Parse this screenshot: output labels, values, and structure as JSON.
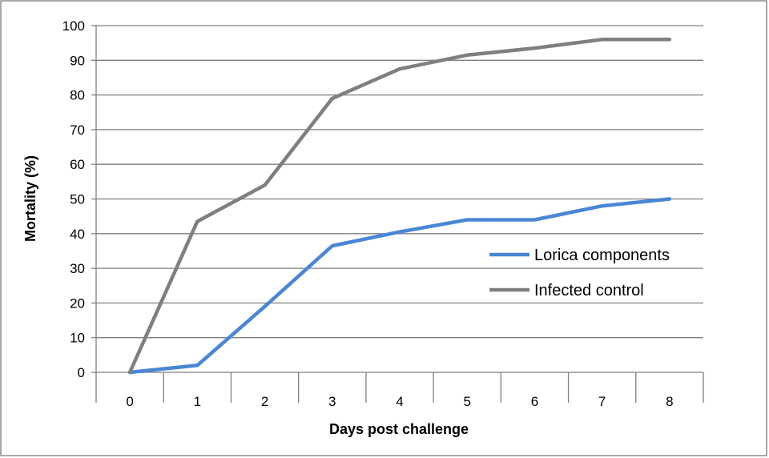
{
  "chart_data": {
    "type": "line",
    "title": "",
    "xlabel": "Days post challenge",
    "ylabel": "Mortality (%)",
    "x": [
      0,
      1,
      2,
      3,
      4,
      5,
      6,
      7,
      8
    ],
    "xticks": [
      "0",
      "1",
      "2",
      "3",
      "4",
      "5",
      "6",
      "7",
      "8"
    ],
    "ylim": [
      0,
      100
    ],
    "yticks": [
      "0",
      "10",
      "20",
      "30",
      "40",
      "50",
      "60",
      "70",
      "80",
      "90",
      "100"
    ],
    "grid": "horizontal",
    "legend_position": "center-right",
    "series": [
      {
        "name": "Lorica components",
        "color": "#4a86d4",
        "values": [
          0,
          2,
          19,
          36.5,
          40.5,
          44,
          44,
          48,
          50
        ]
      },
      {
        "name": "Infected control",
        "color": "#7f7f7f",
        "values": [
          0,
          43.5,
          54,
          79,
          87.5,
          91.5,
          93.5,
          96,
          96
        ]
      }
    ]
  }
}
